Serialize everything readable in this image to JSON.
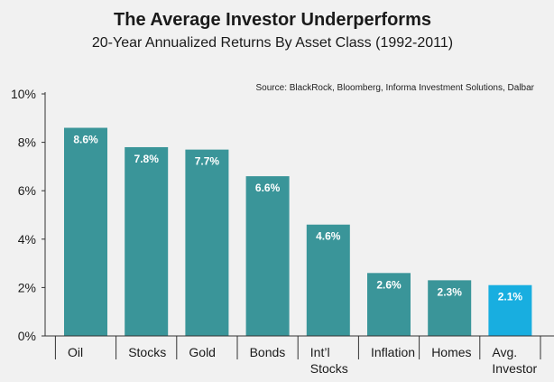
{
  "chart_data": {
    "type": "bar",
    "title": "The Average Investor Underperforms",
    "subtitle": "20-Year Annualized Returns By Asset Class (1992-2011)",
    "source": "Source: BlackRock, Bloomberg, Informa Investment Solutions, Dalbar",
    "categories": [
      "Oil",
      "Stocks",
      "Gold",
      "Bonds",
      "Int'l Stocks",
      "Inflation",
      "Homes",
      "Avg. Investor"
    ],
    "category_lines": [
      [
        "Oil"
      ],
      [
        "Stocks"
      ],
      [
        "Gold"
      ],
      [
        "Bonds"
      ],
      [
        "Int’l",
        "Stocks"
      ],
      [
        "Inflation"
      ],
      [
        "Homes"
      ],
      [
        "Avg.",
        "Investor"
      ]
    ],
    "values": [
      8.6,
      7.8,
      7.7,
      6.6,
      4.6,
      2.6,
      2.3,
      2.1
    ],
    "data_labels": [
      "8.6%",
      "7.8%",
      "7.7%",
      "6.6%",
      "4.6%",
      "2.6%",
      "2.3%",
      "2.1%"
    ],
    "ylim": [
      0,
      10
    ],
    "yticks": [
      0,
      2,
      4,
      6,
      8,
      10
    ],
    "ytick_labels": [
      "0%",
      "2%",
      "4%",
      "6%",
      "8%",
      "10%"
    ],
    "xlabel": "",
    "ylabel": "",
    "grid": false,
    "colors": {
      "bar": "#3a9599",
      "highlight": "#18aee0",
      "highlight_index": 7,
      "axis": "#333333",
      "background": "#f1f1f1"
    }
  }
}
